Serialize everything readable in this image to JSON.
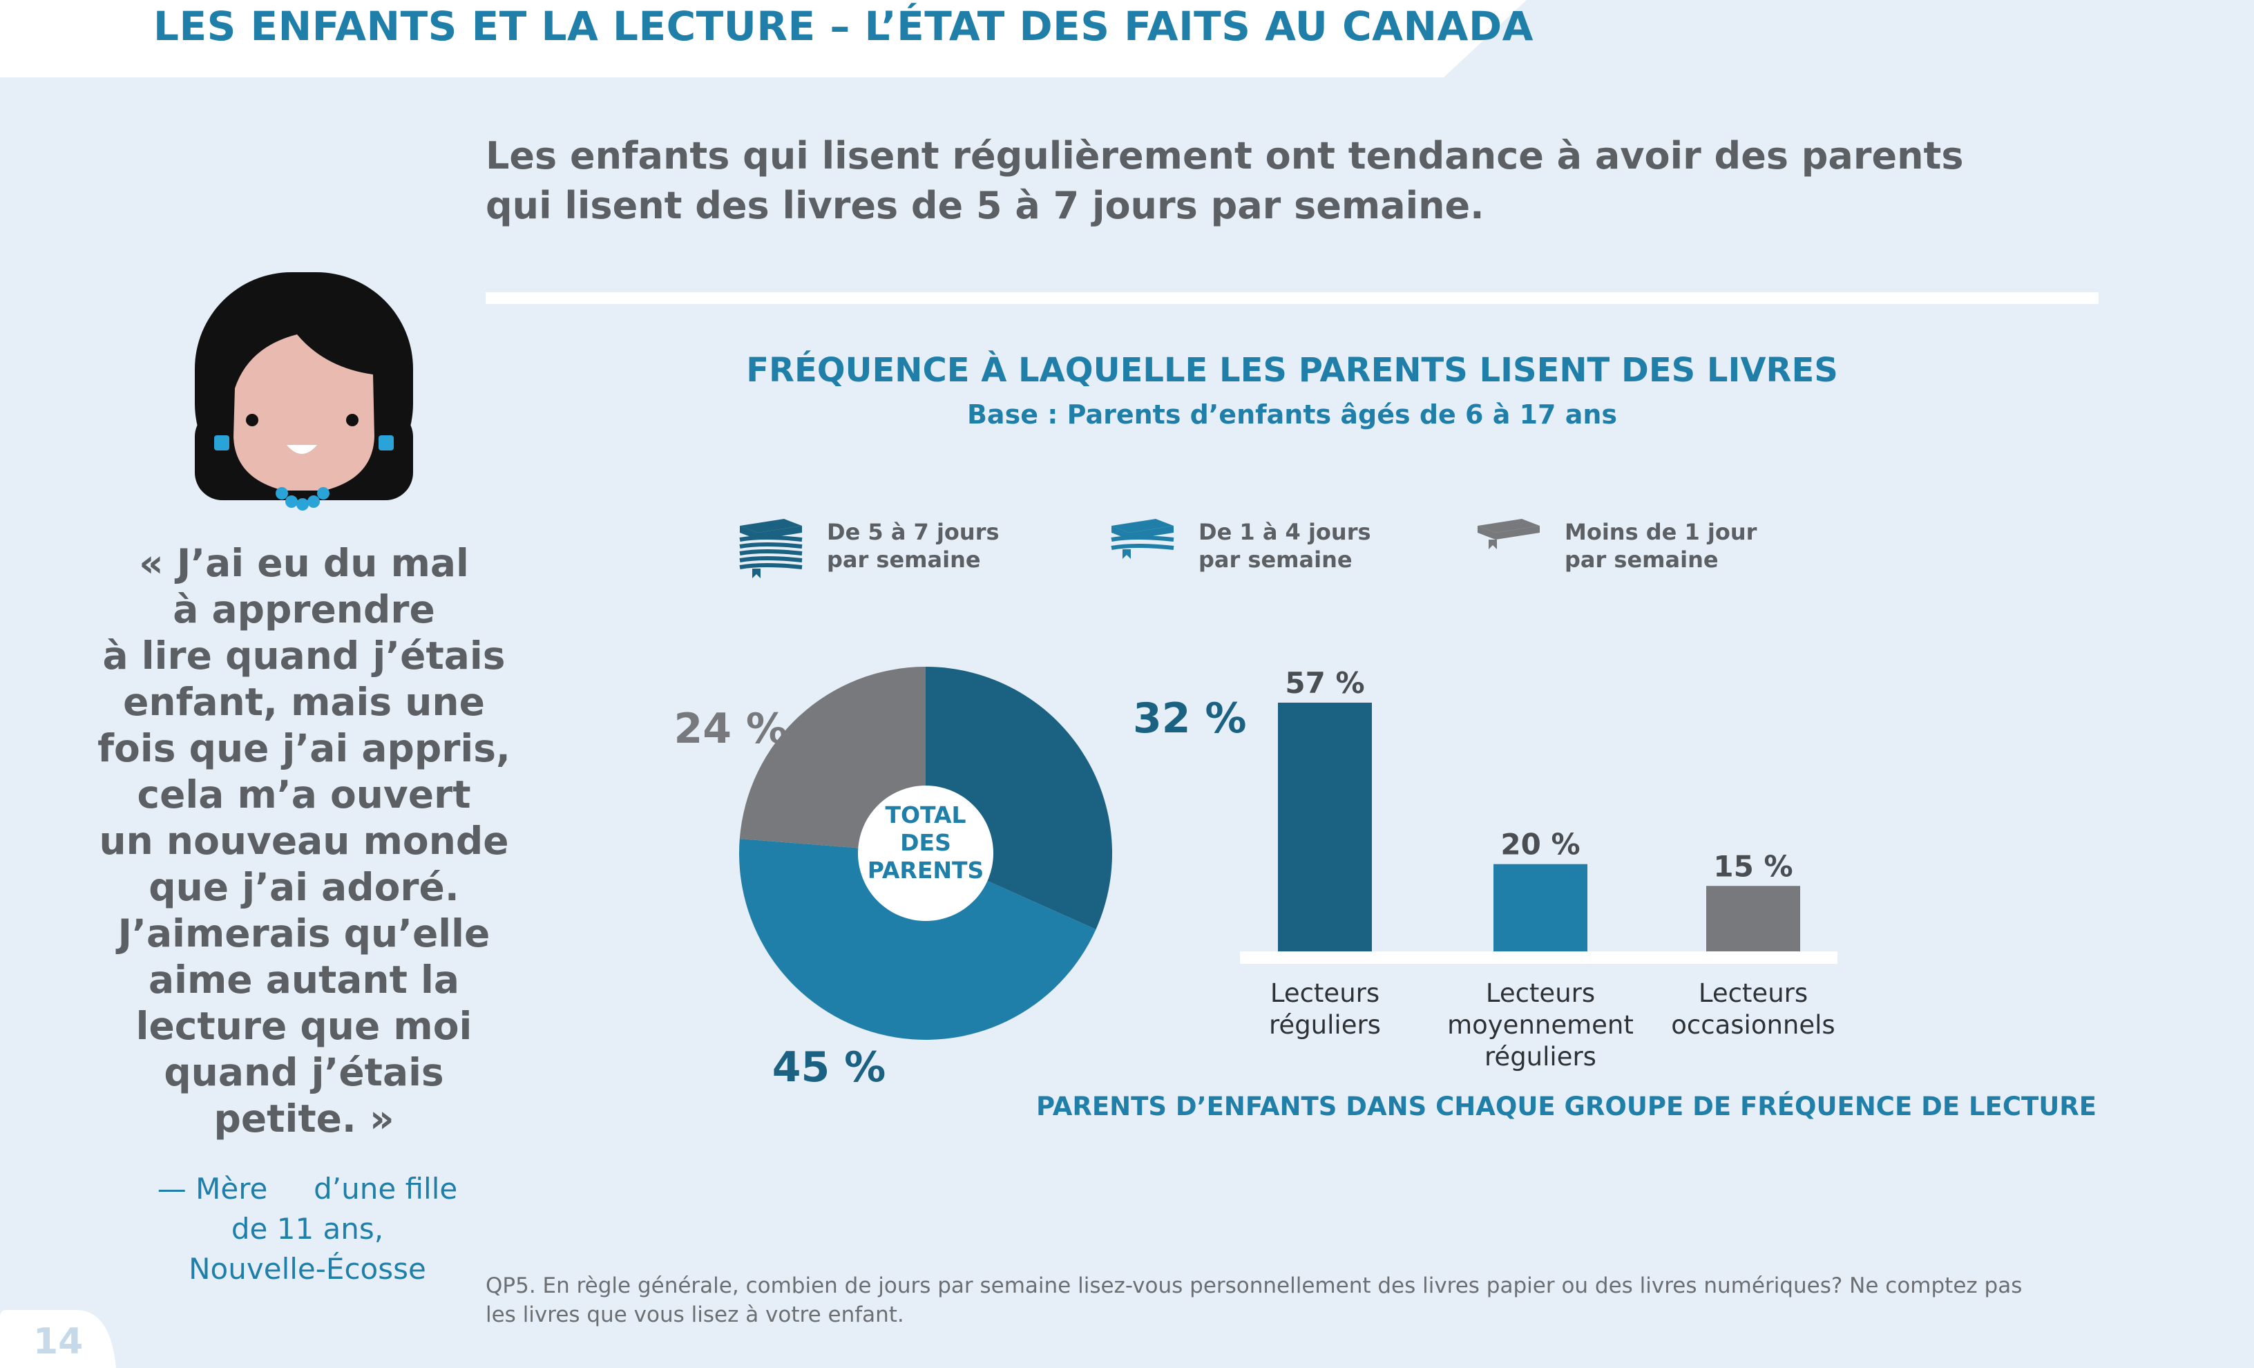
{
  "header": {
    "title": "LES ENFANTS ET LA LECTURE – L’ÉTAT DES FAITS AU CANADA"
  },
  "headline": "Les enfants qui lisent régulièrement ont tendance à avoir des parents qui lisent des livres de 5 à 7 jours par semaine.",
  "quote": {
    "lines": [
      "« J’ai eu du mal",
      "à apprendre",
      "à lire quand j’étais",
      "enfant, mais une",
      "fois que j’ai appris,",
      "cela m’a ouvert",
      "un nouveau monde",
      "que j’ai adoré.",
      "J’aimerais qu’elle",
      "aime autant la",
      "lecture que moi",
      "quand j’étais",
      "petite. »"
    ],
    "attribution": [
      "— Mère     d’une fille",
      "de 11 ans,",
      "Nouvelle-Écosse"
    ]
  },
  "legend": [
    {
      "line1": "De 5 à 7 jours",
      "line2": "par semaine",
      "icon": "book-stack-icon",
      "color": "#1b6182"
    },
    {
      "line1": "De 1 à 4 jours",
      "line2": "par semaine",
      "icon": "two-books-icon",
      "color": "#1f7fa8"
    },
    {
      "line1": "Moins de 1 jour",
      "line2": "par semaine",
      "icon": "single-book-icon",
      "color": "#77797c"
    }
  ],
  "colors": {
    "dark_blue": "#1b6182",
    "mid_blue": "#1f7fa8",
    "grey": "#77797c",
    "background": "#e6eff7"
  },
  "chart_data": [
    {
      "type": "pie",
      "title": "FRÉQUENCE À LAQUELLE LES PARENTS LISENT DES LIVRES",
      "subtitle": "Base : Parents d’enfants âgés de 6 à 17 ans",
      "center_label": [
        "TOTAL",
        "DES",
        "PARENTS"
      ],
      "slices": [
        {
          "label": "De 5 à 7 jours par semaine",
          "value": 32,
          "display": "32 %",
          "color": "#1b6182"
        },
        {
          "label": "De 1 à 4 jours par semaine",
          "value": 45,
          "display": "45 %",
          "color": "#1f7fa8"
        },
        {
          "label": "Moins de 1 jour par semaine",
          "value": 24,
          "display": "24 %",
          "color": "#77797c"
        }
      ]
    },
    {
      "type": "bar",
      "categories": [
        [
          "Lecteurs",
          "réguliers"
        ],
        [
          "Lecteurs",
          "moyennement",
          "réguliers"
        ],
        [
          "Lecteurs",
          "occasionnels"
        ]
      ],
      "values": [
        57,
        20,
        15
      ],
      "labels": [
        "57 %",
        "20 %",
        "15 %"
      ],
      "colors": [
        "#1b6182",
        "#1f7fa8",
        "#77797c"
      ],
      "xlabel": "PARENTS D’ENFANTS DANS CHAQUE GROUPE DE FRÉQUENCE DE LECTURE",
      "ylim": [
        0,
        57
      ]
    }
  ],
  "footnote": "QP5. En règle générale, combien de jours par semaine lisez-vous personnellement des livres papier ou des livres numériques? Ne comptez pas les livres que vous lisez à votre enfant.",
  "page_number": "14"
}
